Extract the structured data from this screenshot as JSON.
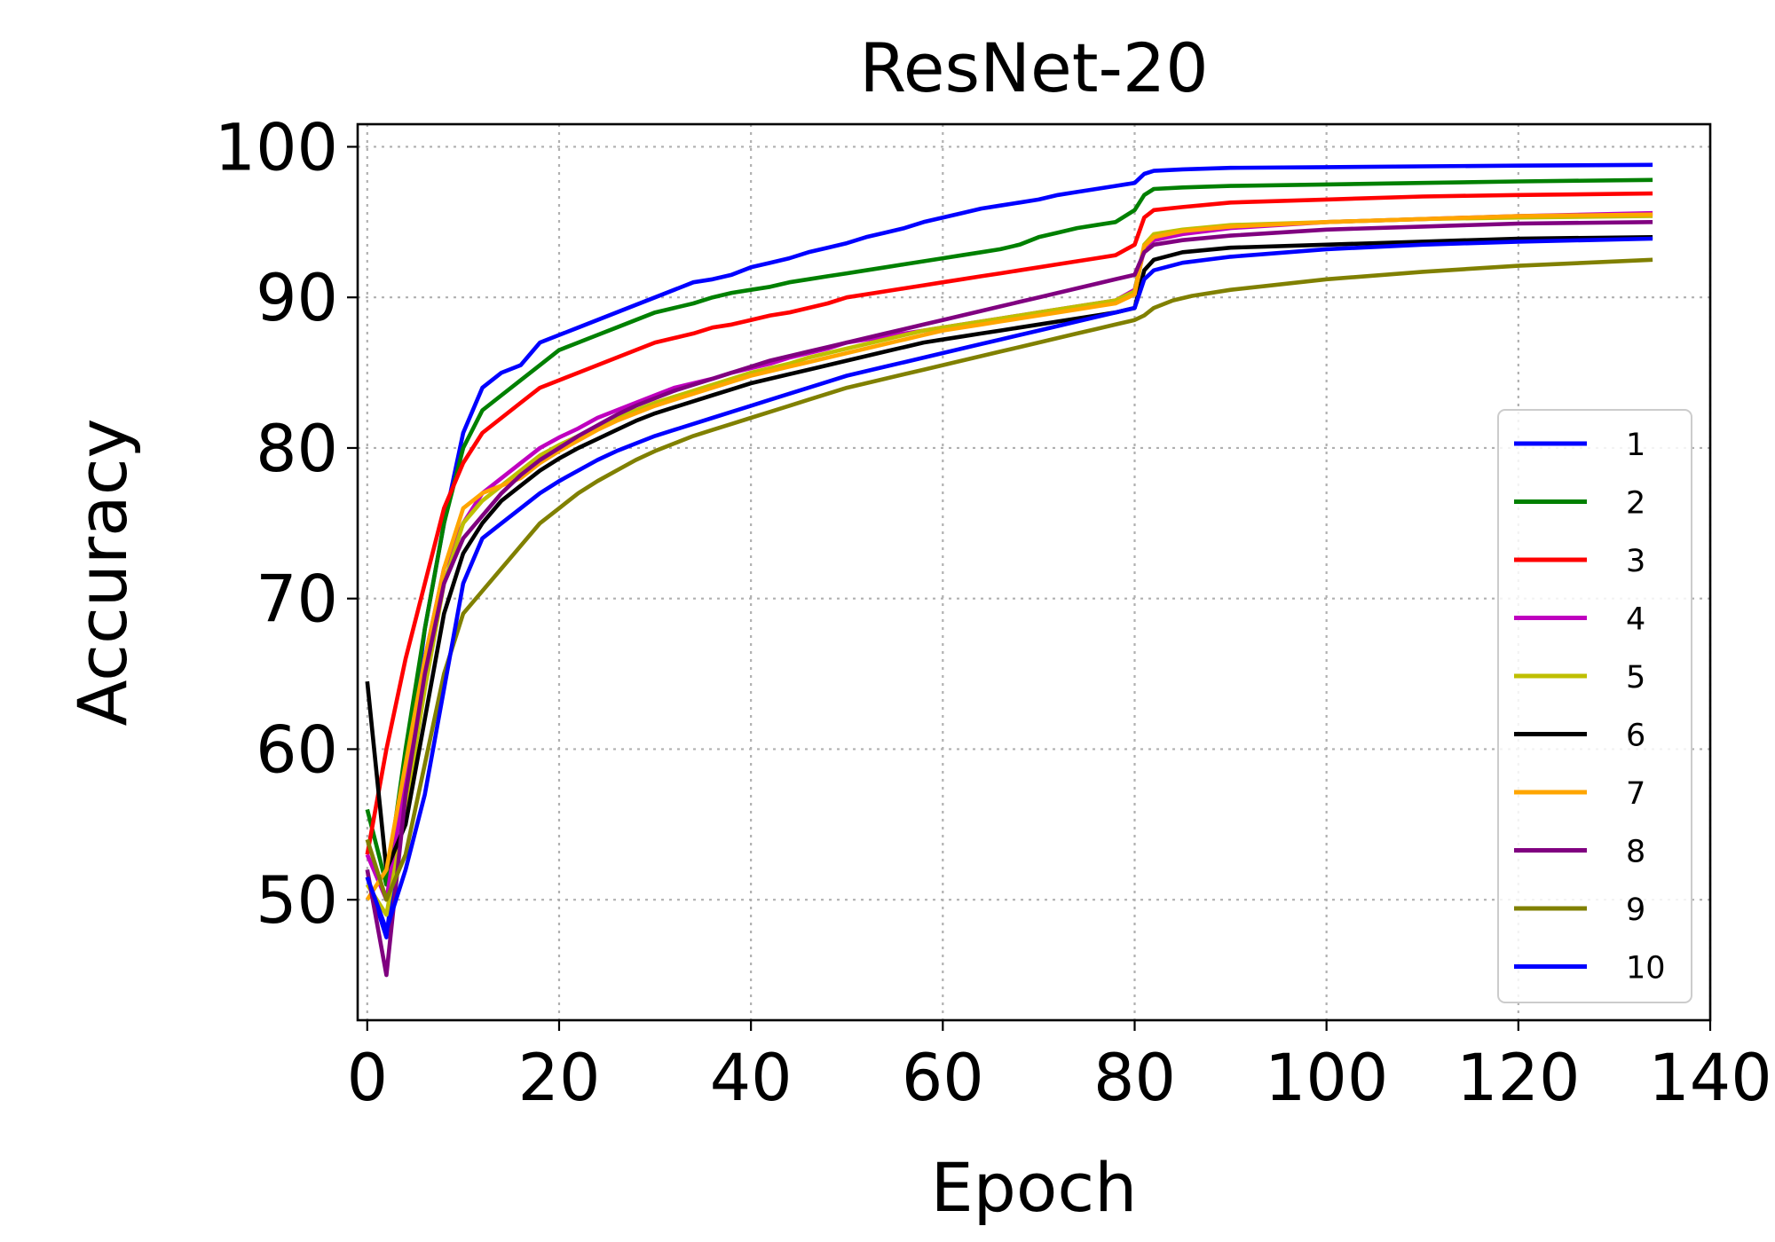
{
  "chart_data": {
    "type": "line",
    "title": "ResNet-20",
    "xlabel": "Epoch",
    "ylabel": "Accuracy",
    "xlim": [
      -1,
      140
    ],
    "ylim": [
      42,
      101.5
    ],
    "xticks": [
      0,
      20,
      40,
      60,
      80,
      100,
      120,
      140
    ],
    "yticks": [
      50,
      60,
      70,
      80,
      90,
      100
    ],
    "grid": true,
    "legend_position": "lower-right",
    "series": [
      {
        "name": "1",
        "color": "#0000ff",
        "x": [
          0,
          2,
          4,
          6,
          8,
          10,
          12,
          14,
          16,
          18,
          20,
          22,
          24,
          26,
          28,
          30,
          32,
          34,
          36,
          38,
          40,
          42,
          44,
          46,
          48,
          50,
          52,
          54,
          56,
          58,
          60,
          62,
          64,
          66,
          68,
          70,
          72,
          74,
          76,
          78,
          80,
          81,
          82,
          85,
          90,
          100,
          110,
          120,
          134
        ],
        "y": [
          51.5,
          47.5,
          58,
          68,
          75,
          81,
          84,
          85,
          85.5,
          87,
          87.5,
          88,
          88.5,
          89,
          89.5,
          90,
          90.5,
          91,
          91.2,
          91.5,
          92,
          92.3,
          92.6,
          93,
          93.3,
          93.6,
          94,
          94.3,
          94.6,
          95,
          95.3,
          95.6,
          95.9,
          96.1,
          96.3,
          96.5,
          96.8,
          97,
          97.2,
          97.4,
          97.6,
          98.2,
          98.4,
          98.5,
          98.6,
          98.65,
          98.7,
          98.75,
          98.8
        ]
      },
      {
        "name": "2",
        "color": "#008000",
        "x": [
          0,
          2,
          4,
          6,
          8,
          10,
          12,
          14,
          16,
          18,
          20,
          22,
          24,
          26,
          28,
          30,
          32,
          34,
          36,
          38,
          40,
          42,
          44,
          46,
          48,
          50,
          52,
          54,
          56,
          58,
          60,
          62,
          64,
          66,
          68,
          70,
          72,
          74,
          76,
          78,
          80,
          81,
          82,
          85,
          90,
          100,
          110,
          120,
          134
        ],
        "y": [
          56,
          51,
          60,
          68,
          75,
          80,
          82.5,
          83.5,
          84.5,
          85.5,
          86.5,
          87,
          87.5,
          88,
          88.5,
          89,
          89.3,
          89.6,
          90,
          90.3,
          90.5,
          90.7,
          91,
          91.2,
          91.4,
          91.6,
          91.8,
          92,
          92.2,
          92.4,
          92.6,
          92.8,
          93,
          93.2,
          93.5,
          94,
          94.3,
          94.6,
          94.8,
          95,
          95.8,
          96.8,
          97.2,
          97.3,
          97.4,
          97.5,
          97.6,
          97.7,
          97.8
        ]
      },
      {
        "name": "3",
        "color": "#ff0000",
        "x": [
          0,
          2,
          4,
          6,
          8,
          10,
          12,
          14,
          16,
          18,
          20,
          22,
          24,
          26,
          28,
          30,
          32,
          34,
          36,
          38,
          40,
          42,
          44,
          46,
          48,
          50,
          52,
          54,
          56,
          58,
          60,
          62,
          64,
          66,
          68,
          70,
          72,
          74,
          76,
          78,
          80,
          81,
          82,
          85,
          90,
          100,
          110,
          120,
          134
        ],
        "y": [
          53,
          60,
          66,
          71,
          76,
          79,
          81,
          82,
          83,
          84,
          84.5,
          85,
          85.5,
          86,
          86.5,
          87,
          87.3,
          87.6,
          88,
          88.2,
          88.5,
          88.8,
          89,
          89.3,
          89.6,
          90,
          90.2,
          90.4,
          90.6,
          90.8,
          91,
          91.2,
          91.4,
          91.6,
          91.8,
          92,
          92.2,
          92.4,
          92.6,
          92.8,
          93.5,
          95.3,
          95.8,
          96,
          96.3,
          96.5,
          96.7,
          96.8,
          96.9
        ]
      },
      {
        "name": "4",
        "color": "#bf00bf",
        "x": [
          0,
          2,
          4,
          6,
          8,
          10,
          12,
          14,
          16,
          18,
          20,
          22,
          24,
          26,
          28,
          30,
          32,
          34,
          36,
          38,
          40,
          42,
          44,
          46,
          48,
          50,
          52,
          54,
          56,
          58,
          60,
          62,
          64,
          66,
          68,
          70,
          72,
          74,
          76,
          78,
          80,
          81,
          82,
          85,
          90,
          100,
          110,
          120,
          134
        ],
        "y": [
          53,
          50,
          58,
          66,
          72,
          75,
          77,
          78,
          79,
          80,
          80.7,
          81.3,
          82,
          82.5,
          83,
          83.5,
          84,
          84.3,
          84.6,
          85,
          85.3,
          85.6,
          86,
          86.3,
          86.6,
          87,
          87.2,
          87.4,
          87.6,
          87.8,
          88,
          88.2,
          88.4,
          88.6,
          88.8,
          89,
          89.2,
          89.4,
          89.6,
          89.8,
          90.5,
          93.2,
          93.8,
          94.2,
          94.6,
          95,
          95.2,
          95.4,
          95.6
        ]
      },
      {
        "name": "5",
        "color": "#bfbf00",
        "x": [
          0,
          2,
          4,
          6,
          8,
          10,
          12,
          14,
          16,
          18,
          20,
          22,
          24,
          26,
          28,
          30,
          32,
          34,
          36,
          38,
          40,
          42,
          44,
          46,
          48,
          50,
          52,
          54,
          56,
          58,
          60,
          62,
          64,
          66,
          68,
          70,
          72,
          74,
          76,
          78,
          80,
          81,
          82,
          85,
          90,
          100,
          110,
          120,
          134
        ],
        "y": [
          51,
          49,
          56,
          64,
          71,
          75,
          76.5,
          77.5,
          78.5,
          79.5,
          80.2,
          80.8,
          81.4,
          82,
          82.5,
          83,
          83.4,
          83.8,
          84.2,
          84.6,
          85,
          85.3,
          85.6,
          86,
          86.3,
          86.6,
          86.9,
          87.2,
          87.5,
          87.8,
          88,
          88.2,
          88.4,
          88.6,
          88.8,
          89,
          89.2,
          89.4,
          89.6,
          89.8,
          90.4,
          93.5,
          94.2,
          94.5,
          94.8,
          95,
          95.2,
          95.3,
          95.4
        ]
      },
      {
        "name": "6",
        "color": "#000000",
        "x": [
          0,
          2,
          4,
          6,
          8,
          10,
          12,
          14,
          16,
          18,
          20,
          22,
          24,
          26,
          28,
          30,
          32,
          34,
          36,
          38,
          40,
          42,
          44,
          46,
          48,
          50,
          52,
          54,
          56,
          58,
          60,
          62,
          64,
          66,
          68,
          70,
          72,
          74,
          76,
          78,
          80,
          81,
          82,
          85,
          90,
          100,
          110,
          120,
          134
        ],
        "y": [
          64.5,
          52,
          55,
          62,
          69,
          73,
          75,
          76.5,
          77.5,
          78.5,
          79.3,
          80,
          80.6,
          81.2,
          81.8,
          82.3,
          82.7,
          83.1,
          83.5,
          83.9,
          84.3,
          84.6,
          84.9,
          85.2,
          85.5,
          85.8,
          86.1,
          86.4,
          86.7,
          87,
          87.2,
          87.4,
          87.6,
          87.8,
          88,
          88.2,
          88.4,
          88.6,
          88.8,
          89,
          89.3,
          91.8,
          92.5,
          93,
          93.3,
          93.5,
          93.7,
          93.9,
          94
        ]
      },
      {
        "name": "7",
        "color": "#ffa500",
        "x": [
          0,
          2,
          4,
          6,
          8,
          10,
          12,
          14,
          16,
          18,
          20,
          22,
          24,
          26,
          28,
          30,
          32,
          34,
          36,
          38,
          40,
          42,
          44,
          46,
          48,
          50,
          52,
          54,
          56,
          58,
          60,
          62,
          64,
          66,
          68,
          70,
          72,
          74,
          76,
          78,
          80,
          81,
          82,
          85,
          90,
          100,
          110,
          120,
          134
        ],
        "y": [
          50,
          52,
          59,
          66,
          72,
          76,
          77,
          77.5,
          78,
          79,
          79.8,
          80.5,
          81.2,
          81.8,
          82.3,
          82.8,
          83.2,
          83.6,
          84,
          84.4,
          84.8,
          85.1,
          85.4,
          85.7,
          86,
          86.3,
          86.6,
          86.9,
          87.2,
          87.5,
          87.8,
          88,
          88.2,
          88.4,
          88.6,
          88.8,
          89,
          89.2,
          89.4,
          89.6,
          90.2,
          93.4,
          94,
          94.4,
          94.7,
          95,
          95.2,
          95.4,
          95.5
        ]
      },
      {
        "name": "8",
        "color": "#800080",
        "x": [
          0,
          2,
          4,
          6,
          8,
          10,
          12,
          14,
          16,
          18,
          20,
          22,
          24,
          26,
          28,
          30,
          32,
          34,
          36,
          38,
          40,
          42,
          44,
          46,
          48,
          50,
          52,
          54,
          56,
          58,
          60,
          62,
          64,
          66,
          68,
          70,
          72,
          74,
          76,
          78,
          80,
          81,
          82,
          85,
          90,
          100,
          110,
          120,
          134
        ],
        "y": [
          52,
          45,
          57,
          65,
          71,
          74,
          75.5,
          77,
          78.2,
          79.2,
          80,
          80.8,
          81.5,
          82.2,
          82.8,
          83.3,
          83.8,
          84.2,
          84.6,
          85,
          85.4,
          85.8,
          86.1,
          86.4,
          86.7,
          87,
          87.3,
          87.6,
          87.9,
          88.2,
          88.5,
          88.8,
          89.1,
          89.4,
          89.7,
          90,
          90.3,
          90.6,
          90.9,
          91.2,
          91.5,
          93,
          93.5,
          93.8,
          94.1,
          94.5,
          94.7,
          94.9,
          95
        ]
      },
      {
        "name": "9",
        "color": "#808000",
        "x": [
          0,
          2,
          4,
          6,
          8,
          10,
          12,
          14,
          16,
          18,
          20,
          22,
          24,
          26,
          28,
          30,
          32,
          34,
          36,
          38,
          40,
          42,
          44,
          46,
          48,
          50,
          52,
          54,
          56,
          58,
          60,
          62,
          64,
          66,
          68,
          70,
          72,
          74,
          76,
          78,
          80,
          81,
          82,
          84,
          86,
          90,
          100,
          110,
          120,
          134
        ],
        "y": [
          54,
          50,
          53,
          59,
          65,
          69,
          70.5,
          72,
          73.5,
          75,
          76,
          77,
          77.8,
          78.5,
          79.2,
          79.8,
          80.3,
          80.8,
          81.2,
          81.6,
          82,
          82.4,
          82.8,
          83.2,
          83.6,
          84,
          84.3,
          84.6,
          84.9,
          85.2,
          85.5,
          85.8,
          86.1,
          86.4,
          86.7,
          87,
          87.3,
          87.6,
          87.9,
          88.2,
          88.5,
          88.8,
          89.3,
          89.8,
          90.1,
          90.5,
          91.2,
          91.7,
          92.1,
          92.5
        ]
      },
      {
        "name": "10",
        "color": "#0000ff",
        "x": [
          0,
          2,
          4,
          6,
          8,
          10,
          12,
          14,
          16,
          18,
          20,
          22,
          24,
          26,
          28,
          30,
          32,
          34,
          36,
          38,
          40,
          42,
          44,
          46,
          48,
          50,
          52,
          54,
          56,
          58,
          60,
          62,
          64,
          66,
          68,
          70,
          72,
          74,
          76,
          78,
          80,
          81,
          82,
          85,
          90,
          100,
          110,
          120,
          134
        ],
        "y": [
          51.5,
          48,
          52,
          57,
          64,
          71,
          74,
          75,
          76,
          77,
          77.8,
          78.5,
          79.2,
          79.8,
          80.3,
          80.8,
          81.2,
          81.6,
          82,
          82.4,
          82.8,
          83.2,
          83.6,
          84,
          84.4,
          84.8,
          85.1,
          85.4,
          85.7,
          86,
          86.3,
          86.6,
          86.9,
          87.2,
          87.5,
          87.8,
          88.1,
          88.4,
          88.7,
          89,
          89.3,
          91.2,
          91.8,
          92.3,
          92.7,
          93.2,
          93.5,
          93.7,
          93.9
        ]
      }
    ]
  }
}
